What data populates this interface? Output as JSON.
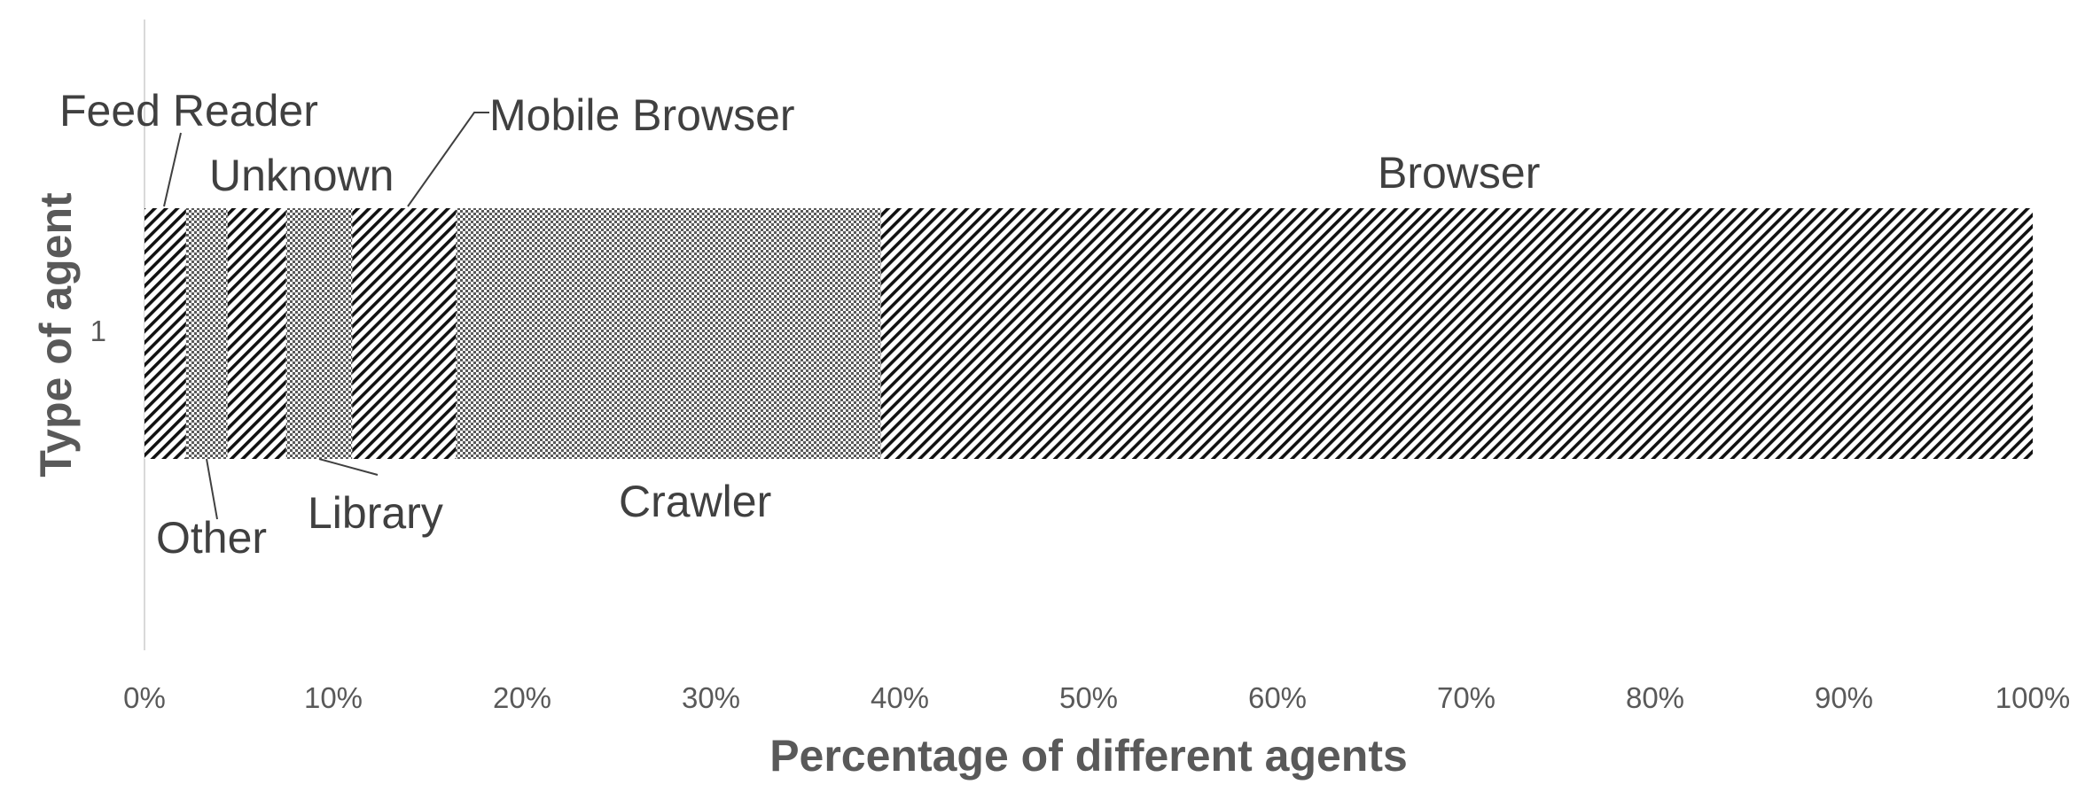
{
  "chart_data": {
    "type": "bar",
    "orientation": "horizontal",
    "stacked": "100%",
    "categories": [
      "1"
    ],
    "series": [
      {
        "name": "Feed Reader",
        "values": [
          2.2
        ],
        "pattern": "diag"
      },
      {
        "name": "Other",
        "values": [
          2.2
        ],
        "pattern": "dots"
      },
      {
        "name": "Unknown",
        "values": [
          3.1
        ],
        "pattern": "diag"
      },
      {
        "name": "Library",
        "values": [
          3.5
        ],
        "pattern": "dots"
      },
      {
        "name": "Mobile Browser",
        "values": [
          5.5
        ],
        "pattern": "diag"
      },
      {
        "name": "Crawler",
        "values": [
          22.5
        ],
        "pattern": "dots"
      },
      {
        "name": "Browser",
        "values": [
          61.0
        ],
        "pattern": "diag"
      }
    ],
    "xlabel": "Percentage of different agents",
    "ylabel": "Type of agent",
    "xlim": [
      0,
      100
    ],
    "xticks": [
      "0%",
      "10%",
      "20%",
      "30%",
      "40%",
      "50%",
      "60%",
      "70%",
      "80%",
      "90%",
      "100%"
    ],
    "grid": false,
    "legend": "none",
    "colors": {
      "text": "#595959",
      "label": "#404040",
      "axis": "#d9d9d9",
      "pattern": "#000000"
    }
  }
}
